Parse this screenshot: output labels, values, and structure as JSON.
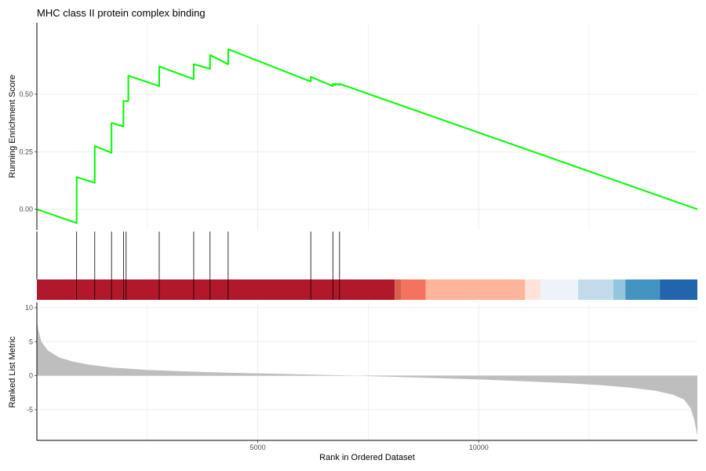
{
  "chart_data": {
    "type": "line",
    "title": "MHC class II protein complex binding",
    "xlabel": "Rank in Ordered Dataset",
    "xlim": [
      0,
      14950
    ],
    "x_ticks": [
      5000,
      10000
    ],
    "x_tick_labels": [
      "5000",
      "10000"
    ],
    "grid": true,
    "panels": {
      "enrichment": {
        "ylabel": "Running Enrichment Score",
        "ylim": [
          -0.09,
          0.81
        ],
        "y_ticks": [
          0.0,
          0.25,
          0.5
        ],
        "y_tick_labels": [
          "0.00",
          "0.25",
          "0.50"
        ],
        "color": "#00ff00",
        "series": [
          {
            "x": [
              0,
              900,
              900,
              1310,
              1310,
              1690,
              1690,
              1960,
              1960,
              2020,
              2020,
              2070,
              2070,
              2770,
              2770,
              3550,
              3550,
              3920,
              3920,
              4330,
              4330,
              6200,
              6200,
              6700,
              6700,
              6750,
              6750,
              6850,
              6850,
              14950
            ],
            "y": [
              0.0,
              -0.06,
              0.14,
              0.115,
              0.275,
              0.245,
              0.375,
              0.36,
              0.47,
              0.47,
              0.47,
              0.47,
              0.58,
              0.535,
              0.62,
              0.565,
              0.63,
              0.61,
              0.67,
              0.63,
              0.695,
              0.555,
              0.575,
              0.535,
              0.545,
              0.54,
              0.545,
              0.54,
              0.545,
              0.0
            ]
          }
        ]
      },
      "hits": {
        "positions": [
          900,
          1310,
          1690,
          1960,
          2020,
          2770,
          3550,
          3920,
          4330,
          6200,
          6700,
          6850
        ],
        "color_bar": [
          {
            "start": 0,
            "end": 8100,
            "color": "#b2182b"
          },
          {
            "start": 8100,
            "end": 8250,
            "color": "#d6604d"
          },
          {
            "start": 8250,
            "end": 8800,
            "color": "#f4735f"
          },
          {
            "start": 8800,
            "end": 11050,
            "color": "#fdb49b"
          },
          {
            "start": 11050,
            "end": 11400,
            "color": "#fde4da"
          },
          {
            "start": 11400,
            "end": 12250,
            "color": "#eef3fa"
          },
          {
            "start": 12250,
            "end": 13050,
            "color": "#c2dbea"
          },
          {
            "start": 13050,
            "end": 13320,
            "color": "#92c5de"
          },
          {
            "start": 13320,
            "end": 14100,
            "color": "#4393c3"
          },
          {
            "start": 14100,
            "end": 14950,
            "color": "#2166ac"
          }
        ]
      },
      "ranked": {
        "ylabel": "Ranked List Metric",
        "ylim": [
          -9.5,
          10.8
        ],
        "y_ticks": [
          -5,
          0,
          5,
          10
        ],
        "y_tick_labels": [
          "-5",
          "0",
          "5",
          "10"
        ],
        "fill": "#bebebe",
        "x": [
          0,
          30,
          100,
          250,
          500,
          800,
          1200,
          1700,
          2500,
          3500,
          4500,
          5500,
          6500,
          7300,
          7500,
          8000,
          9000,
          10000,
          11000,
          12000,
          12800,
          13500,
          14000,
          14400,
          14650,
          14800,
          14880,
          14950
        ],
        "y": [
          8.0,
          6.8,
          5.0,
          3.7,
          2.7,
          2.1,
          1.6,
          1.2,
          0.85,
          0.6,
          0.42,
          0.28,
          0.12,
          0.0,
          -0.05,
          -0.15,
          -0.35,
          -0.55,
          -0.8,
          -1.1,
          -1.4,
          -1.8,
          -2.2,
          -2.8,
          -3.5,
          -4.8,
          -6.5,
          -8.8
        ]
      }
    }
  }
}
